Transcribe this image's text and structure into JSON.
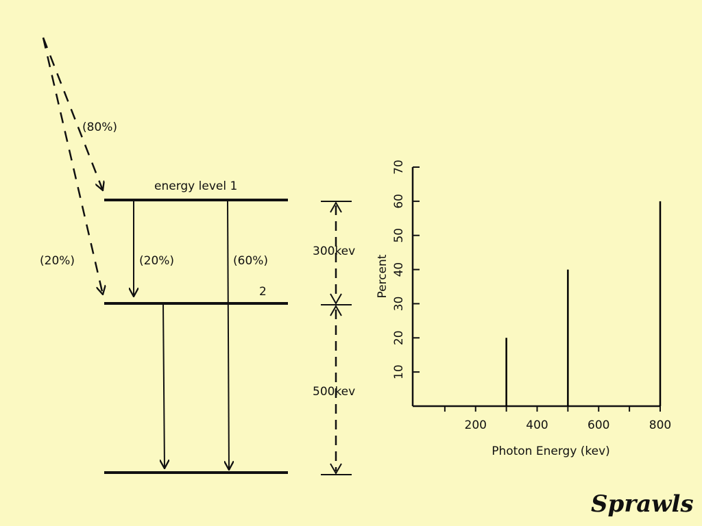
{
  "diagram": {
    "labels": {
      "beta_80": "(80%)",
      "level_1": "energy level  1",
      "beta_20": "(20%)",
      "gamma_20": "(20%)",
      "gamma_60": "(60%)",
      "level_2": "2",
      "gap_300": "300kev",
      "gap_500": "500kev"
    },
    "signature": "Sprawls"
  },
  "chart_data": {
    "type": "bar",
    "x": [
      300,
      500,
      800
    ],
    "values": [
      20,
      40,
      60
    ],
    "color": "#000000",
    "xlabel": "Photon Energy (kev)",
    "ylabel": "Percent",
    "xlim": [
      0,
      800
    ],
    "xticks": [
      200,
      400,
      600,
      800
    ],
    "x_minor_ticks": [
      100,
      300,
      500,
      700
    ],
    "ylim": [
      0,
      70
    ],
    "yticks": [
      10,
      20,
      30,
      40,
      50,
      60,
      70
    ]
  }
}
